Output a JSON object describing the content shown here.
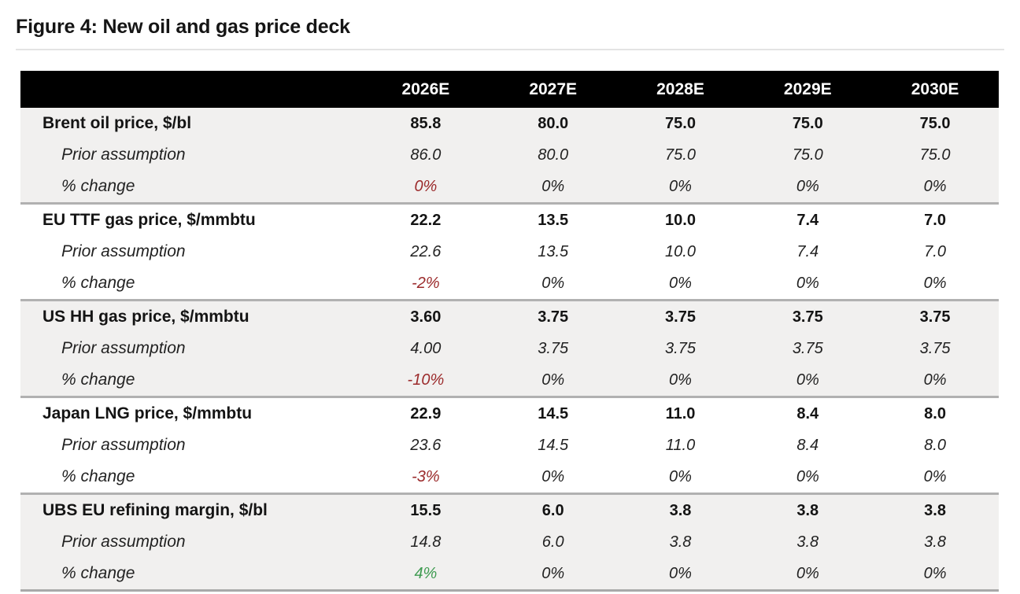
{
  "figure": {
    "title": "Figure 4: New oil and gas price deck"
  },
  "table": {
    "columns": [
      "2026E",
      "2027E",
      "2028E",
      "2029E",
      "2030E"
    ],
    "sub_labels": {
      "prior": "Prior assumption",
      "pct": "% change"
    },
    "blocks": [
      {
        "label": "Brent oil price, $/bl",
        "current": [
          "85.8",
          "80.0",
          "75.0",
          "75.0",
          "75.0"
        ],
        "prior": [
          "86.0",
          "80.0",
          "75.0",
          "75.0",
          "75.0"
        ],
        "pct": [
          "0%",
          "0%",
          "0%",
          "0%",
          "0%"
        ],
        "pct_styles": [
          "negative",
          "neutral",
          "neutral",
          "neutral",
          "neutral"
        ]
      },
      {
        "label": "EU TTF gas price, $/mmbtu",
        "current": [
          "22.2",
          "13.5",
          "10.0",
          "7.4",
          "7.0"
        ],
        "prior": [
          "22.6",
          "13.5",
          "10.0",
          "7.4",
          "7.0"
        ],
        "pct": [
          "-2%",
          "0%",
          "0%",
          "0%",
          "0%"
        ],
        "pct_styles": [
          "negative",
          "neutral",
          "neutral",
          "neutral",
          "neutral"
        ]
      },
      {
        "label": "US HH gas price, $/mmbtu",
        "current": [
          "3.60",
          "3.75",
          "3.75",
          "3.75",
          "3.75"
        ],
        "prior": [
          "4.00",
          "3.75",
          "3.75",
          "3.75",
          "3.75"
        ],
        "pct": [
          "-10%",
          "0%",
          "0%",
          "0%",
          "0%"
        ],
        "pct_styles": [
          "negative",
          "neutral",
          "neutral",
          "neutral",
          "neutral"
        ]
      },
      {
        "label": "Japan LNG price, $/mmbtu",
        "current": [
          "22.9",
          "14.5",
          "11.0",
          "8.4",
          "8.0"
        ],
        "prior": [
          "23.6",
          "14.5",
          "11.0",
          "8.4",
          "8.0"
        ],
        "pct": [
          "-3%",
          "0%",
          "0%",
          "0%",
          "0%"
        ],
        "pct_styles": [
          "negative",
          "neutral",
          "neutral",
          "neutral",
          "neutral"
        ]
      },
      {
        "label": "UBS EU refining margin, $/bl",
        "current": [
          "15.5",
          "6.0",
          "3.8",
          "3.8",
          "3.8"
        ],
        "prior": [
          "14.8",
          "6.0",
          "3.8",
          "3.8",
          "3.8"
        ],
        "pct": [
          "4%",
          "0%",
          "0%",
          "0%",
          "0%"
        ],
        "pct_styles": [
          "positive",
          "neutral",
          "neutral",
          "neutral",
          "neutral"
        ]
      }
    ],
    "colors": {
      "header_bg": "#000000",
      "header_text": "#ffffff",
      "shaded_row_bg": "#f1f0ef",
      "negative": "#9b2a2b",
      "positive": "#3f9b51",
      "neutral_text": "#141414",
      "separator": "#b1b1b1"
    }
  }
}
